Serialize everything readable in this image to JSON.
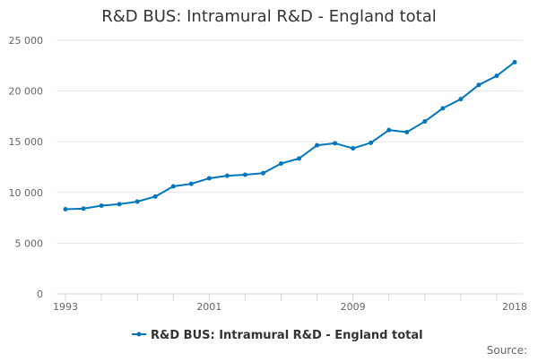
{
  "chart_data": {
    "type": "line",
    "title": "R&D BUS: Intramural R&D - England total",
    "xlabel": "",
    "ylabel": "",
    "ylim": [
      0,
      25000
    ],
    "yticks": [
      0,
      5000,
      10000,
      15000,
      20000,
      25000
    ],
    "ytick_labels": [
      "0",
      "5 000",
      "10 000",
      "15 000",
      "20 000",
      "25 000"
    ],
    "xlim": [
      1993,
      2018
    ],
    "xtick_labels": [
      "1993",
      "2001",
      "2009",
      "2018"
    ],
    "x": [
      1993,
      1994,
      1995,
      1996,
      1997,
      1998,
      1999,
      2000,
      2001,
      2002,
      2003,
      2004,
      2005,
      2006,
      2007,
      2008,
      2009,
      2010,
      2011,
      2012,
      2013,
      2014,
      2015,
      2016,
      2017,
      2018
    ],
    "series": [
      {
        "name": "R&D BUS: Intramural R&D - England total",
        "color": "#0077bb",
        "values": [
          8350,
          8400,
          8700,
          8850,
          9100,
          9600,
          10600,
          10850,
          11400,
          11650,
          11750,
          11900,
          12850,
          13350,
          14650,
          14850,
          14350,
          14900,
          16150,
          15950,
          17000,
          18300,
          19200,
          20600,
          21500,
          22850
        ]
      }
    ],
    "grid": true,
    "legend_position": "bottom",
    "credit": "Source:"
  }
}
